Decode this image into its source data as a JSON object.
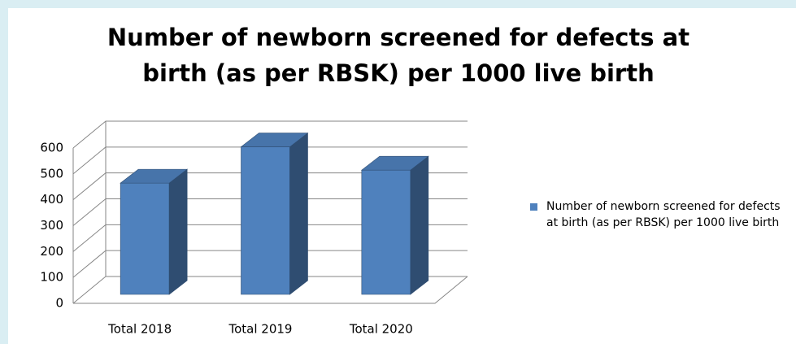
{
  "chart_data": {
    "type": "bar3d",
    "title": "Number of newborn screened for defects at birth (as per RBSK) per 1000 live birth",
    "categories": [
      "Total 2018",
      "Total 2019",
      "Total 2020"
    ],
    "series": [
      {
        "name": "Number of newborn screened for defects at birth (as per RBSK) per 1000 live birth",
        "color": "#4f81bd",
        "values": [
          430,
          570,
          480
        ]
      }
    ],
    "ylim": [
      0,
      600
    ],
    "yticks": [
      0,
      100,
      200,
      300,
      400,
      500,
      600
    ],
    "grid": true,
    "legend": "right"
  }
}
